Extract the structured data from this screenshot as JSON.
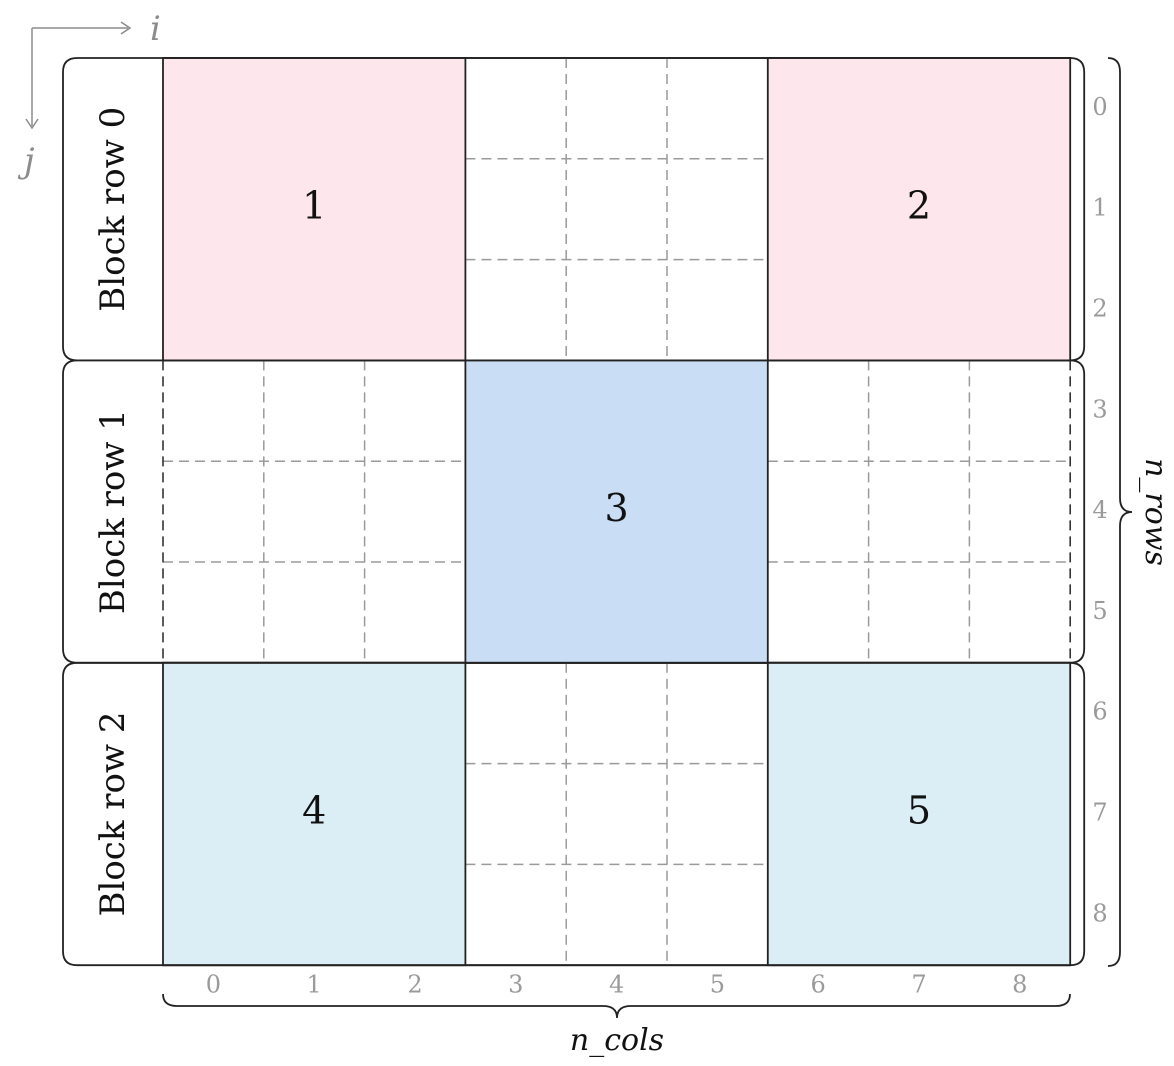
{
  "axes": {
    "i_label": "i",
    "j_label": "j",
    "color": "#8c8c8c"
  },
  "grid": {
    "n_rows": 9,
    "n_cols": 9,
    "block_size": 3,
    "row_indices": [
      "0",
      "1",
      "2",
      "3",
      "4",
      "5",
      "6",
      "7",
      "8"
    ],
    "col_indices": [
      "0",
      "1",
      "2",
      "3",
      "4",
      "5",
      "6",
      "7",
      "8"
    ],
    "rows_label": "n_rows",
    "cols_label": "n_cols",
    "dash_color": "#9a9a9a",
    "index_color": "#9a9a9a"
  },
  "block_rows": [
    {
      "label": "Block row 0"
    },
    {
      "label": "Block row 1"
    },
    {
      "label": "Block row 2"
    }
  ],
  "blocks": [
    {
      "id": "1",
      "block_row": 0,
      "block_col": 0,
      "color": "#fde6ec"
    },
    {
      "id": "2",
      "block_row": 0,
      "block_col": 2,
      "color": "#fde6ec"
    },
    {
      "id": "3",
      "block_row": 1,
      "block_col": 1,
      "color": "#c9def4"
    },
    {
      "id": "4",
      "block_row": 2,
      "block_col": 0,
      "color": "#dbeef6"
    },
    {
      "id": "5",
      "block_row": 2,
      "block_col": 2,
      "color": "#dbeef6"
    }
  ]
}
